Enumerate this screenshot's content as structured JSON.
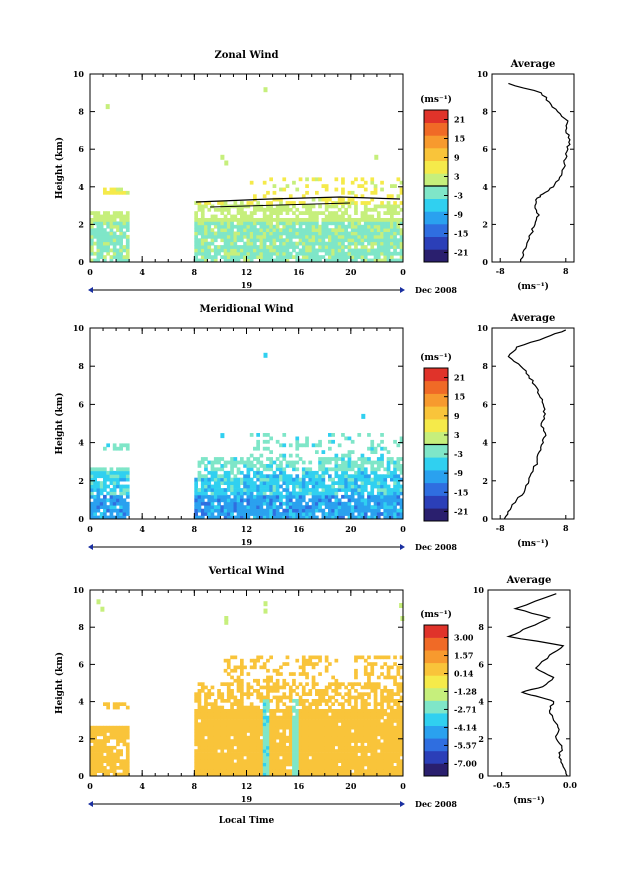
{
  "x_date_label": "19",
  "x_month_label": "Dec 2008",
  "x_axis_title": "Local Time",
  "y_axis_title": "Height (km)",
  "unit_label": "(ms⁻¹)",
  "avg_title": "Average",
  "colors": {
    "scale": [
      "#2a1f6e",
      "#2b3fb8",
      "#2f6ee0",
      "#2aa1ef",
      "#30d0f0",
      "#7fe6c8",
      "#c6ef7c",
      "#f5ea4a",
      "#f9c43a",
      "#f79a2e",
      "#f06a26",
      "#e0332a"
    ]
  },
  "chart_data": [
    {
      "type": "heatmap",
      "title": "Zonal Wind",
      "xlabel": "",
      "ylabel": "Height (km)",
      "xlim": [
        0,
        24
      ],
      "ylim": [
        0,
        10
      ],
      "xticks": [
        "0",
        "4",
        "8",
        "12",
        "16",
        "20",
        "0"
      ],
      "yticks": [
        "0",
        "2",
        "4",
        "6",
        "8",
        "10"
      ],
      "colorbar": {
        "unit": "(ms⁻¹)",
        "range": [
          -24,
          24
        ],
        "ticks": [
          "21",
          "15",
          "9",
          "3",
          "-3",
          "-9",
          "-15",
          "-21"
        ],
        "tick_values": [
          21,
          15,
          9,
          3,
          -3,
          -9,
          -15,
          -21
        ],
        "zero_line": 0
      },
      "dominant_values": {
        "0-2 km": -2,
        "2-3 km": 2,
        "above 3 km": 5
      },
      "average_profile": {
        "title": "Average",
        "xlabel": "(ms⁻¹)",
        "xticks": [
          "-8",
          "8"
        ],
        "xlim": [
          -10,
          10
        ],
        "ylim": [
          0,
          10
        ],
        "x": [
          -3.0,
          -2.5,
          -1.5,
          -0.5,
          0.5,
          1.5,
          0.5,
          1.0,
          3.0,
          5.0,
          6.5,
          7.5,
          8.0,
          8.5,
          9.0,
          8.0,
          8.5,
          6.0,
          4.0,
          2.0,
          -6.0
        ],
        "y": [
          0.0,
          0.5,
          1.0,
          1.5,
          2.0,
          2.5,
          3.0,
          3.4,
          3.7,
          4.0,
          4.5,
          5.0,
          5.5,
          6.0,
          6.5,
          7.0,
          7.5,
          8.0,
          8.5,
          9.0,
          9.5
        ]
      }
    },
    {
      "type": "heatmap",
      "title": "Meridional Wind",
      "xlabel": "",
      "ylabel": "Height (km)",
      "xlim": [
        0,
        24
      ],
      "ylim": [
        0,
        10
      ],
      "xticks": [
        "0",
        "4",
        "8",
        "12",
        "16",
        "20",
        "0"
      ],
      "yticks": [
        "0",
        "2",
        "4",
        "6",
        "8",
        "10"
      ],
      "colorbar": {
        "unit": "(ms⁻¹)",
        "range": [
          -24,
          24
        ],
        "ticks": [
          "21",
          "15",
          "9",
          "3",
          "-3",
          "-9",
          "-15",
          "-21"
        ],
        "tick_values": [
          21,
          15,
          9,
          3,
          -3,
          -9,
          -15,
          -21
        ],
        "zero_line": 0
      },
      "dominant_values": {
        "0-2 km": -9,
        "2-4 km": -4,
        "above 4 km": -2
      },
      "average_profile": {
        "title": "Average",
        "xlabel": "(ms⁻¹)",
        "xticks": [
          "-8",
          "8"
        ],
        "xlim": [
          -10,
          10
        ],
        "ylim": [
          0,
          10
        ],
        "x": [
          -7.0,
          -5.5,
          -4.0,
          -2.0,
          -1.0,
          0.0,
          1.0,
          1.5,
          2.5,
          3.0,
          2.0,
          3.0,
          2.5,
          1.5,
          0.5,
          -1.0,
          -3.0,
          -6.0,
          -4.0,
          3.0,
          8.0
        ],
        "y": [
          0.0,
          0.5,
          1.0,
          1.5,
          2.0,
          2.5,
          3.0,
          3.5,
          4.0,
          4.5,
          5.0,
          5.5,
          6.0,
          6.5,
          7.0,
          7.5,
          8.0,
          8.5,
          9.0,
          9.5,
          9.9
        ]
      }
    },
    {
      "type": "heatmap",
      "title": "Vertical Wind",
      "xlabel": "Local Time",
      "ylabel": "Height (km)",
      "xlim": [
        0,
        24
      ],
      "ylim": [
        0,
        10
      ],
      "xticks": [
        "0",
        "4",
        "8",
        "12",
        "16",
        "20",
        "0"
      ],
      "yticks": [
        "0",
        "2",
        "4",
        "6",
        "8",
        "10"
      ],
      "colorbar": {
        "unit": "(ms⁻¹)",
        "range": [
          -8,
          4
        ],
        "ticks": [
          "3.00",
          "1.57",
          "0.14",
          "-1.28",
          "-2.71",
          "-4.14",
          "-5.57",
          "-7.00"
        ],
        "tick_values": [
          3.0,
          1.57,
          0.14,
          -1.28,
          -2.71,
          -4.14,
          -5.57,
          -7.0
        ],
        "zero_line": null
      },
      "dominant_values": {
        "0-6 km": 0.3,
        "strong downdraft near 13.3 h and 15.7 h": -2.5
      },
      "average_profile": {
        "title": "Average",
        "xlabel": "(ms⁻¹)",
        "xticks": [
          "-0.5",
          "0.0"
        ],
        "xlim": [
          -0.6,
          0.0
        ],
        "ylim": [
          0,
          10
        ],
        "x": [
          -0.02,
          -0.05,
          -0.08,
          -0.06,
          -0.1,
          -0.08,
          -0.12,
          -0.15,
          -0.12,
          -0.25,
          -0.35,
          -0.2,
          -0.12,
          -0.25,
          -0.15,
          -0.05,
          -0.45,
          -0.3,
          -0.15,
          -0.4,
          -0.1
        ],
        "y": [
          0.0,
          0.5,
          1.0,
          1.5,
          2.0,
          2.5,
          3.0,
          3.5,
          4.0,
          4.3,
          4.5,
          4.8,
          5.3,
          5.8,
          6.5,
          7.0,
          7.5,
          8.0,
          8.5,
          9.0,
          9.8
        ]
      }
    }
  ]
}
